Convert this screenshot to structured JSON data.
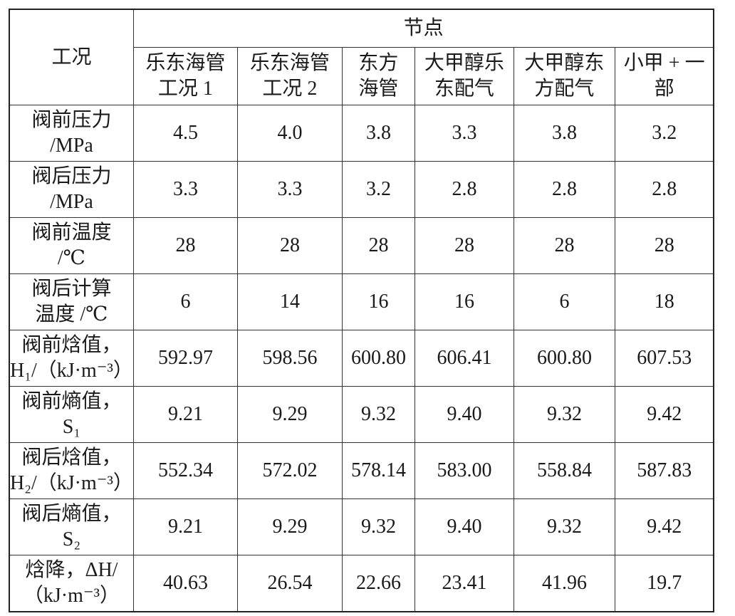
{
  "table": {
    "corner": "工况",
    "group_header": "节点",
    "columns": [
      [
        "乐东海管",
        "工况 1"
      ],
      [
        "乐东海管",
        "工况 2"
      ],
      [
        "东方",
        "海管"
      ],
      [
        "大甲醇乐",
        "东配气"
      ],
      [
        "大甲醇东",
        "方配气"
      ],
      [
        "小甲 + 一",
        "部"
      ]
    ],
    "rows": [
      {
        "label": [
          "阀前压力",
          "/MPa"
        ],
        "cells": [
          "4.5",
          "4.0",
          "3.8",
          "3.3",
          "3.8",
          "3.2"
        ]
      },
      {
        "label": [
          "阀后压力",
          "/MPa"
        ],
        "cells": [
          "3.3",
          "3.3",
          "3.2",
          "2.8",
          "2.8",
          "2.8"
        ]
      },
      {
        "label": [
          "阀前温度",
          "/℃"
        ],
        "cells": [
          "28",
          "28",
          "28",
          "28",
          "28",
          "28"
        ]
      },
      {
        "label": [
          "阀后计算",
          "温度 /℃"
        ],
        "cells": [
          "6",
          "14",
          "16",
          "16",
          "6",
          "18"
        ]
      },
      {
        "label": [
          "阀前焓值，",
          "H₁/（kJ·m⁻³）"
        ],
        "cells": [
          "592.97",
          "598.56",
          "600.80",
          "606.41",
          "600.80",
          "607.53"
        ]
      },
      {
        "label": [
          "阀前熵值，",
          "S₁"
        ],
        "cells": [
          "9.21",
          "9.29",
          "9.32",
          "9.40",
          "9.32",
          "9.42"
        ]
      },
      {
        "label": [
          "阀后焓值，",
          "H₂/（kJ·m⁻³）"
        ],
        "cells": [
          "552.34",
          "572.02",
          "578.14",
          "583.00",
          "558.84",
          "587.83"
        ]
      },
      {
        "label": [
          "阀后熵值，",
          "S₂"
        ],
        "cells": [
          "9.21",
          "9.29",
          "9.32",
          "9.40",
          "9.32",
          "9.42"
        ]
      },
      {
        "label": [
          "焓降，ΔH/",
          "（kJ·m⁻³）"
        ],
        "cells": [
          "40.63",
          "26.54",
          "22.66",
          "23.41",
          "41.96",
          "19.7"
        ]
      }
    ]
  }
}
